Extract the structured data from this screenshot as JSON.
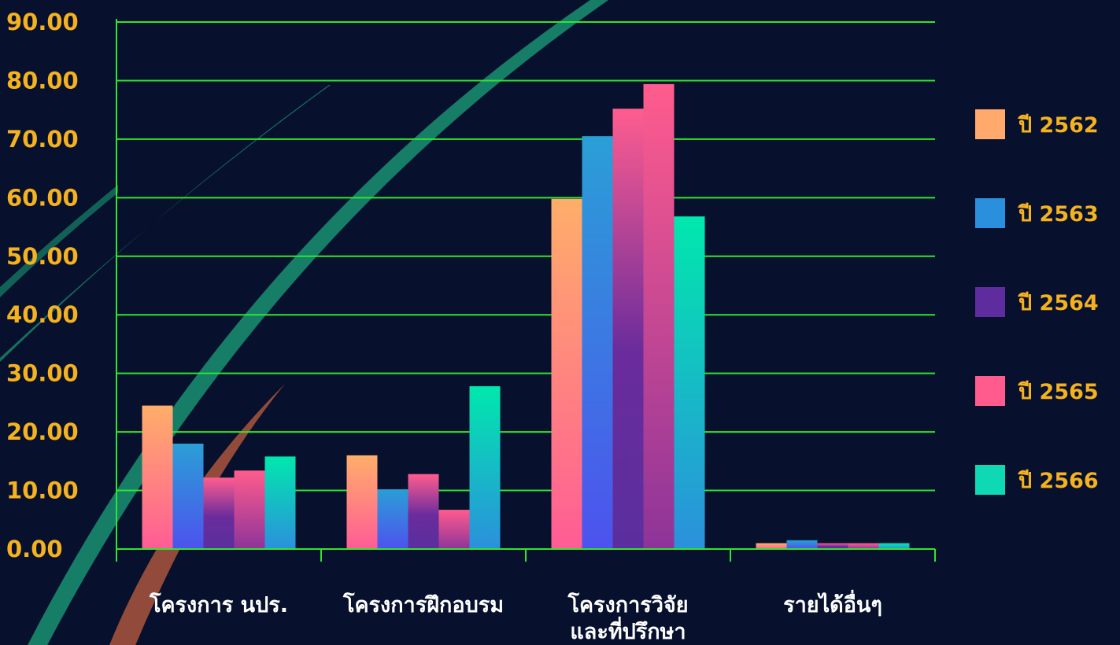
{
  "chart_data": {
    "type": "bar",
    "title": "",
    "xlabel": "",
    "ylabel": "",
    "ylim": [
      0,
      90
    ],
    "yticks": [
      "0.00",
      "10.00",
      "20.00",
      "30.00",
      "40.00",
      "50.00",
      "60.00",
      "70.00",
      "80.00",
      "90.00"
    ],
    "grid": true,
    "legend_position": "right",
    "categories": [
      [
        "โครงการ นปร."
      ],
      [
        "โครงการฝึกอบรม"
      ],
      [
        "โครงการวิจัย",
        "และที่ปรึกษา"
      ],
      [
        "รายได้อื่นๆ"
      ]
    ],
    "series": [
      {
        "name": "ปี 2562",
        "color": "#ffa96c",
        "values": [
          24.5,
          16.0,
          59.8,
          1.0
        ]
      },
      {
        "name": "ปี 2563",
        "color": "#2a8fdc",
        "values": [
          18.0,
          10.2,
          70.5,
          1.5
        ]
      },
      {
        "name": "ปี 2564",
        "color": "#5e2c9e",
        "values": [
          12.2,
          12.8,
          75.2,
          1.0
        ]
      },
      {
        "name": "ปี 2565",
        "color": "#ff5c8d",
        "values": [
          13.4,
          6.7,
          79.4,
          1.0
        ]
      },
      {
        "name": "ปี 2566",
        "color": "#0fd8b4",
        "values": [
          15.8,
          27.8,
          56.8,
          1.0
        ]
      }
    ],
    "colors": {
      "background": "#07102c",
      "grid": "#2ee62e",
      "tick_text": "#f5b220",
      "category_text": "#ffffff"
    }
  }
}
